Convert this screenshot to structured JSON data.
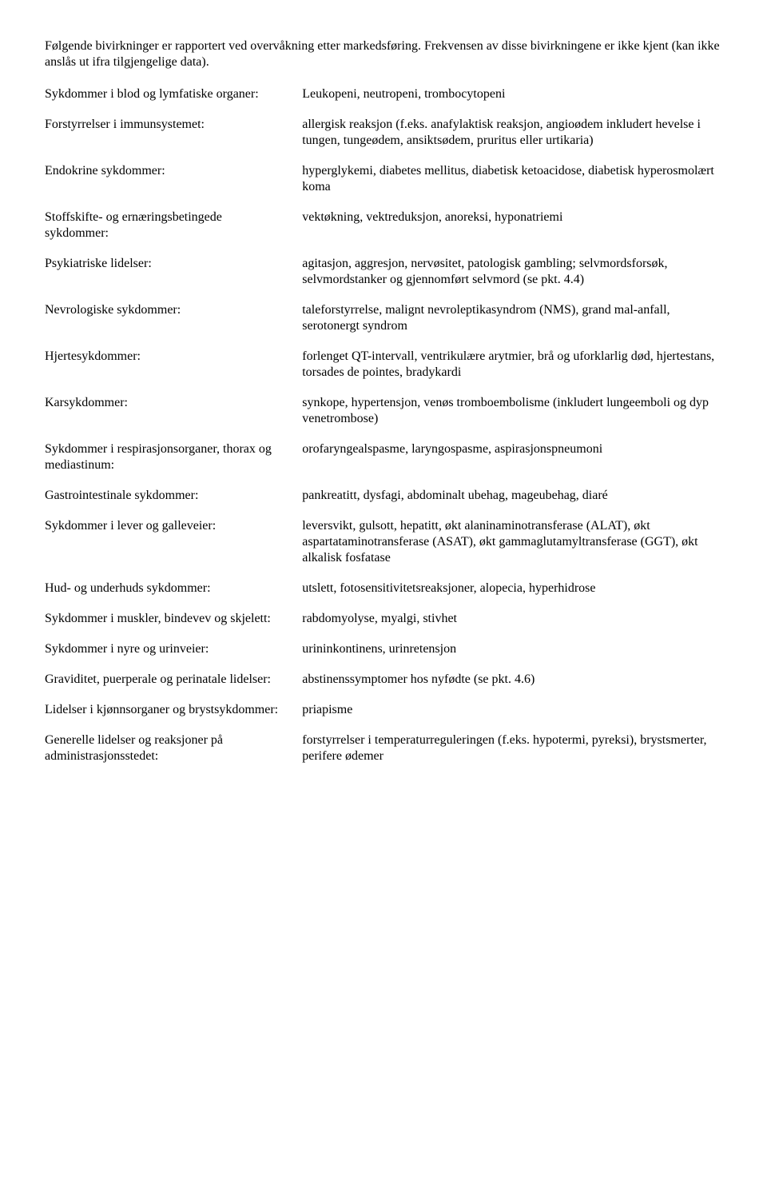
{
  "intro": "Følgende bivirkninger er rapportert ved overvåkning etter markedsføring. Frekvensen av disse bivirkningene er ikke kjent (kan ikke anslås ut ifra tilgjengelige data).",
  "rows": [
    {
      "system": "Sykdommer i blod og lymfatiske organer:",
      "reactions": "Leukopeni, neutropeni, trombocytopeni"
    },
    {
      "system": "Forstyrrelser i immunsystemet:",
      "reactions": "allergisk reaksjon (f.eks. anafylaktisk reaksjon, angioødem inkludert hevelse i tungen, tungeødem, ansiktsødem, pruritus eller urtikaria)"
    },
    {
      "system": "Endokrine sykdommer:",
      "reactions": "hyperglykemi, diabetes mellitus, diabetisk ketoacidose, diabetisk hyperosmolært koma"
    },
    {
      "system": "Stoffskifte- og ernæringsbetingede sykdommer:",
      "reactions": "vektøkning, vektreduksjon, anoreksi, hyponatriemi"
    },
    {
      "system": "Psykiatriske lidelser:",
      "reactions": "agitasjon, aggresjon, nervøsitet, patologisk gambling; selvmordsforsøk, selvmordstanker og gjennomført selvmord (se pkt. 4.4)"
    },
    {
      "system": "Nevrologiske sykdommer:",
      "reactions": "taleforstyrrelse, malignt nevroleptikasyndrom (NMS), grand mal-anfall, serotonergt syndrom"
    },
    {
      "system": "Hjertesykdommer:",
      "reactions": "forlenget QT-intervall, ventrikulære arytmier, brå og uforklarlig død, hjertestans, torsades de pointes, bradykardi"
    },
    {
      "system": "Karsykdommer:",
      "reactions": "synkope, hypertensjon, venøs tromboembolisme (inkludert lungeemboli og dyp venetrombose)"
    },
    {
      "system": "Sykdommer i respirasjonsorganer, thorax og mediastinum:",
      "reactions": "orofaryngealspasme, laryngospasme, aspirasjonspneumoni"
    },
    {
      "system": "Gastrointestinale sykdommer:",
      "reactions": "pankreatitt, dysfagi, abdominalt ubehag, mageubehag, diaré"
    },
    {
      "system": "Sykdommer i lever og galleveier:",
      "reactions": "leversvikt, gulsott, hepatitt, økt alaninaminotransferase (ALAT), økt aspartataminotransferase (ASAT), økt gammaglutamyltransferase (GGT), økt alkalisk fosfatase"
    },
    {
      "system": "Hud- og underhuds sykdommer:",
      "reactions": "utslett, fotosensitivitetsreaksjoner, alopecia, hyperhidrose"
    },
    {
      "system": "Sykdommer i muskler, bindevev og skjelett:",
      "reactions": "rabdomyolyse, myalgi, stivhet"
    },
    {
      "system": "Sykdommer i nyre og urinveier:",
      "reactions": "urininkontinens, urinretensjon"
    },
    {
      "system": "Graviditet, puerperale og perinatale lidelser:",
      "reactions": "abstinenssymptomer hos nyfødte (se pkt. 4.6)"
    },
    {
      "system": "Lidelser i kjønnsorganer og brystsykdommer:",
      "reactions": "priapisme"
    },
    {
      "system": "Generelle lidelser og reaksjoner på administrasjonsstedet:",
      "reactions": "forstyrrelser i temperaturreguleringen (f.eks. hypotermi, pyreksi), brystsmerter, perifere ødemer"
    }
  ]
}
